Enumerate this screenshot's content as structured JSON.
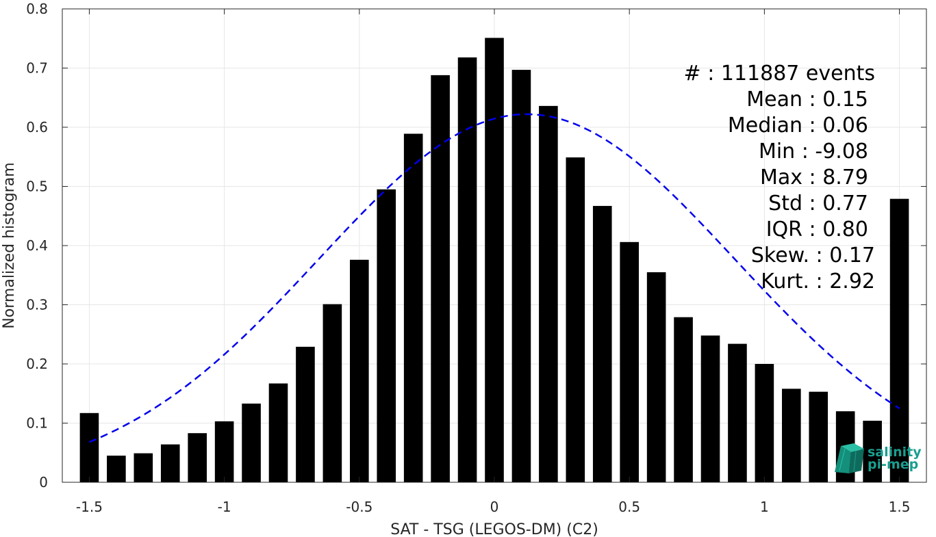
{
  "chart_data": {
    "type": "bar",
    "title": "",
    "xlabel": "SAT - TSG (LEGOS-DM) (C2)",
    "ylabel": "Normalized histogram",
    "xlim": [
      -1.6,
      1.6
    ],
    "ylim": [
      0,
      0.8
    ],
    "xticks": [
      -1.5,
      -1,
      -0.5,
      0,
      0.5,
      1,
      1.5
    ],
    "xtick_labels": [
      "-1.5",
      "-1",
      "-0.5",
      "0",
      "0.5",
      "1",
      "1.5"
    ],
    "yticks": [
      0,
      0.1,
      0.2,
      0.3,
      0.4,
      0.5,
      0.6,
      0.7,
      0.8
    ],
    "ytick_labels": [
      "0",
      "0.1",
      "0.2",
      "0.3",
      "0.4",
      "0.5",
      "0.6",
      "0.7",
      "0.8"
    ],
    "grid": true,
    "bar_color": "#000000",
    "bin_width": 0.1,
    "x": [
      -1.5,
      -1.4,
      -1.3,
      -1.2,
      -1.1,
      -1.0,
      -0.9,
      -0.8,
      -0.7,
      -0.6,
      -0.5,
      -0.4,
      -0.3,
      -0.2,
      -0.1,
      0.0,
      0.1,
      0.2,
      0.3,
      0.4,
      0.5,
      0.6,
      0.7,
      0.8,
      0.9,
      1.0,
      1.1,
      1.2,
      1.3,
      1.4,
      1.5
    ],
    "values": [
      0.117,
      0.045,
      0.049,
      0.064,
      0.083,
      0.103,
      0.133,
      0.167,
      0.229,
      0.301,
      0.376,
      0.495,
      0.589,
      0.688,
      0.718,
      0.751,
      0.697,
      0.636,
      0.549,
      0.467,
      0.406,
      0.355,
      0.279,
      0.248,
      0.234,
      0.2,
      0.158,
      0.153,
      0.12,
      0.104,
      0.479
    ],
    "fit_curve": {
      "style": "dashed",
      "color": "#0000ee",
      "mean": 0.12,
      "peak": 0.622,
      "std": 0.77,
      "x_range": [
        -1.5,
        1.5
      ]
    },
    "stats": {
      "count": {
        "label": "#  :",
        "value": "111887 events"
      },
      "rows": [
        {
          "label": "Mean :",
          "value": "0.15"
        },
        {
          "label": "Median :",
          "value": "0.06"
        },
        {
          "label": "Min :",
          "value": "-9.08"
        },
        {
          "label": "Max :",
          "value": "8.79"
        },
        {
          "label": "Std :",
          "value": "0.77"
        },
        {
          "label": "IQR :",
          "value": "0.80"
        },
        {
          "label": "Skew. :",
          "value": "0.17"
        },
        {
          "label": "Kurt. :",
          "value": "2.92"
        }
      ]
    }
  },
  "logo": {
    "line1": "salinity",
    "line2": "pi-mep",
    "color": "#1a9e8f"
  }
}
